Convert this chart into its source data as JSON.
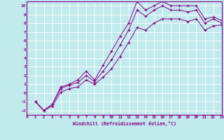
{
  "xlabel": "Windchill (Refroidissement éolien,°C)",
  "bg_color": "#c0eaec",
  "line_color": "#8b008b",
  "grid_color": "#ffffff",
  "xlim": [
    0,
    23
  ],
  "ylim": [
    -2.5,
    10.5
  ],
  "yticks": [
    -2,
    -1,
    0,
    1,
    2,
    3,
    4,
    5,
    6,
    7,
    8,
    9,
    10
  ],
  "xticks": [
    0,
    1,
    2,
    3,
    4,
    5,
    6,
    7,
    8,
    9,
    10,
    11,
    12,
    13,
    14,
    15,
    16,
    17,
    18,
    19,
    20,
    21,
    22,
    23
  ],
  "curve1_x": [
    1,
    2,
    3,
    4,
    5,
    6,
    7,
    8,
    9,
    10,
    11,
    12,
    13,
    14,
    15,
    16,
    17,
    18,
    19,
    20,
    21,
    22,
    23
  ],
  "curve1_y": [
    -1.0,
    -2.0,
    -1.3,
    0.7,
    1.0,
    1.5,
    2.5,
    1.5,
    3.2,
    4.8,
    6.5,
    8.0,
    10.5,
    9.5,
    10.0,
    10.5,
    10.0,
    10.0,
    10.0,
    10.0,
    8.5,
    8.7,
    8.3
  ],
  "curve2_x": [
    1,
    2,
    3,
    4,
    5,
    6,
    7,
    8,
    9,
    10,
    11,
    12,
    13,
    14,
    15,
    16,
    17,
    18,
    19,
    20,
    21,
    22,
    23
  ],
  "curve2_y": [
    -1.0,
    -2.0,
    -1.3,
    0.5,
    0.9,
    1.2,
    2.0,
    1.3,
    2.5,
    3.8,
    5.5,
    7.2,
    9.5,
    8.8,
    9.5,
    10.0,
    9.5,
    9.5,
    9.3,
    9.5,
    8.0,
    8.5,
    8.0
  ],
  "curve3_x": [
    1,
    2,
    3,
    4,
    5,
    6,
    7,
    8,
    9,
    10,
    11,
    12,
    13,
    14,
    15,
    16,
    17,
    18,
    19,
    20,
    21,
    22,
    23
  ],
  "curve3_y": [
    -1.0,
    -2.0,
    -1.5,
    0.1,
    0.5,
    0.7,
    1.5,
    1.0,
    1.8,
    2.8,
    4.2,
    5.8,
    7.5,
    7.2,
    8.0,
    8.5,
    8.5,
    8.5,
    8.2,
    8.5,
    7.2,
    7.7,
    7.8
  ]
}
